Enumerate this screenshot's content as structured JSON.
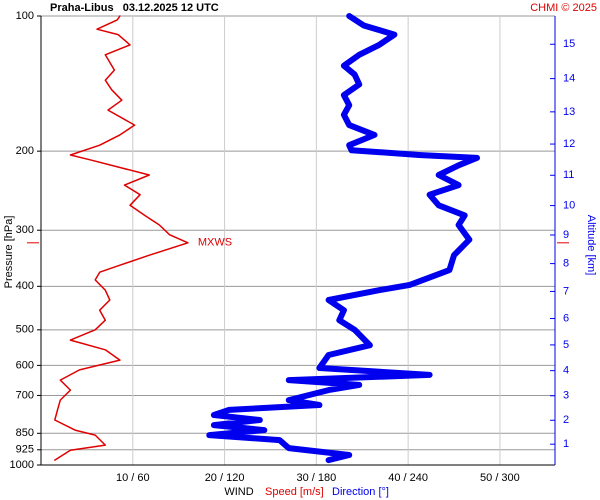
{
  "chart_data": {
    "type": "line",
    "title": "Praha-Libus   03.12.2025 12 UTC",
    "credit": "CHMI © 2025",
    "ylabel": "Pressure [hPa]",
    "y2label": "Altitude [km]",
    "xlabel": "WIND",
    "ylim": [
      1000,
      100
    ],
    "yscale": "log",
    "yticks": [
      100,
      200,
      300,
      400,
      500,
      600,
      700,
      850,
      925,
      1000
    ],
    "xlim": [
      0,
      56
    ],
    "x2lim": [
      0,
      336
    ],
    "xticks": [
      {
        "value": 10,
        "label": "10 / 60"
      },
      {
        "value": 20,
        "label": "20 / 120"
      },
      {
        "value": 30,
        "label": "30 / 180"
      },
      {
        "value": 40,
        "label": "40 / 240"
      },
      {
        "value": 50,
        "label": "50 / 300"
      }
    ],
    "y2scale": "standard-atmosphere",
    "y2ticks": [
      1,
      2,
      3,
      4,
      5,
      6,
      7,
      8,
      9,
      10,
      11,
      12,
      13,
      14,
      15
    ],
    "grid": true,
    "annotation": "MXWS",
    "series": [
      {
        "name": "Speed [m/s]",
        "color": "#e00000",
        "axis": "x",
        "pressure": [
          100,
          102,
          107,
          110,
          116,
          122,
          132,
          139,
          146,
          154,
          162,
          175,
          184,
          194,
          204,
          209,
          226,
          238,
          250,
          264,
          278,
          292,
          307,
          320,
          341,
          359,
          372,
          387,
          408,
          429,
          452,
          476,
          500,
          527,
          554,
          584,
          614,
          647,
          681,
          717,
          754,
          794,
          836,
          858,
          903,
          927,
          975
        ],
        "values": [
          8.6,
          8.3,
          6.1,
          8.4,
          9.7,
          7.0,
          8.0,
          7.0,
          7.7,
          8.8,
          7.3,
          10.2,
          8.6,
          6.4,
          3.2,
          5.3,
          11.8,
          9.1,
          10.8,
          9.7,
          11.3,
          12.9,
          14.0,
          16.0,
          11.8,
          8.6,
          6.4,
          5.9,
          7.0,
          7.5,
          6.4,
          7.0,
          5.9,
          3.2,
          7.0,
          8.6,
          4.2,
          2.1,
          3.2,
          2.1,
          1.8,
          1.5,
          3.7,
          5.9,
          7.0,
          3.2,
          1.5
        ]
      },
      {
        "name": "Direction [°]",
        "color": "#0000ee",
        "axis": "x2",
        "pressure": [
          100,
          105,
          110,
          116,
          122,
          129,
          135,
          142,
          150,
          158,
          166,
          175,
          184,
          194,
          199,
          204,
          207,
          215,
          226,
          238,
          250,
          264,
          278,
          292,
          315,
          341,
          368,
          397,
          408,
          429,
          452,
          476,
          500,
          541,
          569,
          608,
          630,
          647,
          663,
          681,
          717,
          735,
          754,
          774,
          794,
          815,
          836,
          858,
          880,
          917,
          950,
          975
        ],
        "values": [
          201.5,
          211,
          231,
          221,
          208,
          198,
          205,
          208,
          198,
          201.5,
          198,
          201.5,
          218,
          201.5,
          203,
          247,
          285,
          273,
          260,
          273,
          254,
          260,
          277,
          273,
          280,
          270,
          267,
          241,
          221,
          188,
          198,
          195,
          205,
          215,
          188,
          182,
          254,
          162,
          208,
          188,
          162,
          182,
          123,
          113,
          143,
          113,
          146,
          110,
          156,
          162,
          201.5,
          188
        ]
      }
    ]
  }
}
